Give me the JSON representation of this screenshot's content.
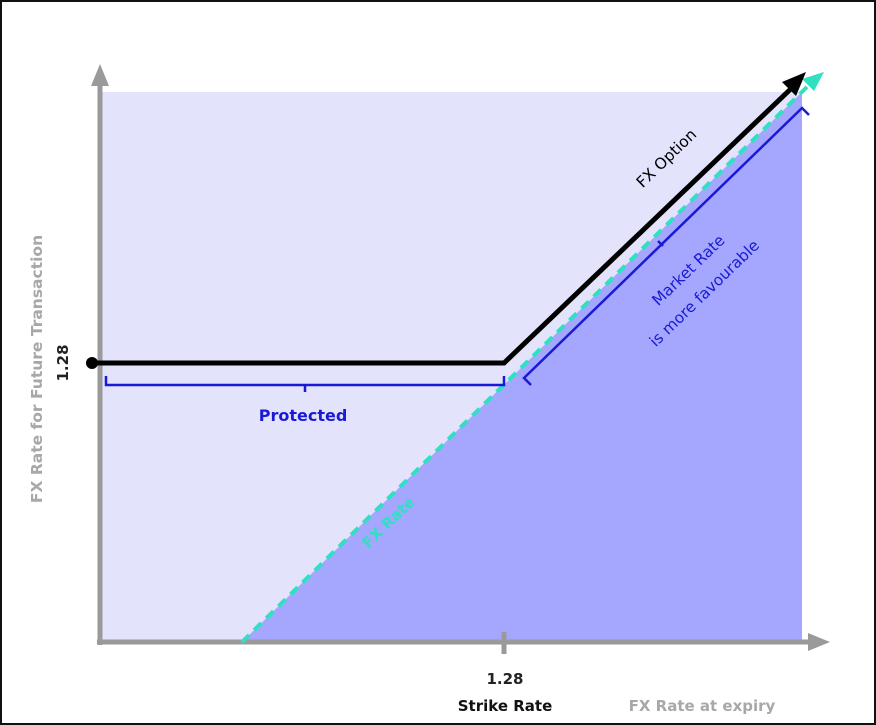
{
  "colors": {
    "upper_region": "#e3e3fb",
    "lower_region": "#a5a6fe",
    "axis": "#9a9a9a",
    "option_line": "#000000",
    "fx_rate_line": "#2fe0c2",
    "bracket": "#1a1ad6",
    "label_grey": "#a8a8a8"
  },
  "labels": {
    "y_axis_title": "FX Rate for Future Transaction",
    "x_axis_title": "FX Rate at expiry",
    "y_tick": "1.28",
    "x_tick": "1.28",
    "strike_rate": "Strike Rate",
    "fx_option": "FX Option",
    "fx_rate": "FX Rate",
    "protected": "Protected",
    "market_rate_line1": "Market Rate",
    "market_rate_line2": "is more favourable"
  }
}
